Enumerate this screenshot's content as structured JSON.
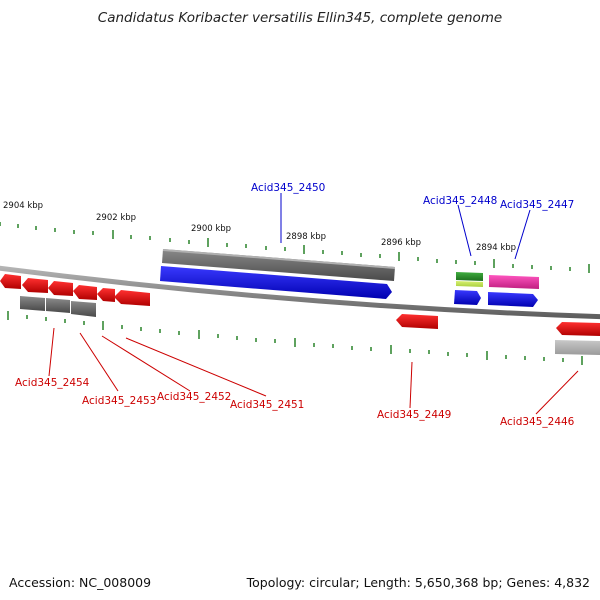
{
  "title": "Candidatus Koribacter versatilis Ellin345, complete genome",
  "footer": {
    "accession": "Accession: NC_008009",
    "summary": "Topology: circular; Length: 5,650,368 bp; Genes: 4,832"
  },
  "scale_labels": [
    {
      "id": "2904",
      "text": "2904 kbp"
    },
    {
      "id": "2902",
      "text": "2902 kbp"
    },
    {
      "id": "2900",
      "text": "2900 kbp"
    },
    {
      "id": "2898",
      "text": "2898 kbp"
    },
    {
      "id": "2896",
      "text": "2896 kbp"
    },
    {
      "id": "2894",
      "text": "2894 kbp"
    }
  ],
  "gene_labels": [
    {
      "id": "2450",
      "text": "Acid345_2450",
      "color": "#0000cc"
    },
    {
      "id": "2448",
      "text": "Acid345_2448",
      "color": "#0000cc"
    },
    {
      "id": "2447",
      "text": "Acid345_2447",
      "color": "#0000cc"
    },
    {
      "id": "2454",
      "text": "Acid345_2454",
      "color": "#cc0000"
    },
    {
      "id": "2453",
      "text": "Acid345_2453",
      "color": "#cc0000"
    },
    {
      "id": "2452",
      "text": "Acid345_2452",
      "color": "#cc0000"
    },
    {
      "id": "2451",
      "text": "Acid345_2451",
      "color": "#cc0000"
    },
    {
      "id": "2449",
      "text": "Acid345_2449",
      "color": "#cc0000"
    },
    {
      "id": "2446",
      "text": "Acid345_2446",
      "color": "#cc0000"
    }
  ],
  "colors": {
    "forward_strand": "#0000e6",
    "reverse_strand": "#e60000",
    "gene_feature": "#707070",
    "green_feature": "#2e8b2e",
    "magenta_feature": "#e0309a",
    "tick": "#1a7a1a",
    "backbone": "#888888"
  }
}
